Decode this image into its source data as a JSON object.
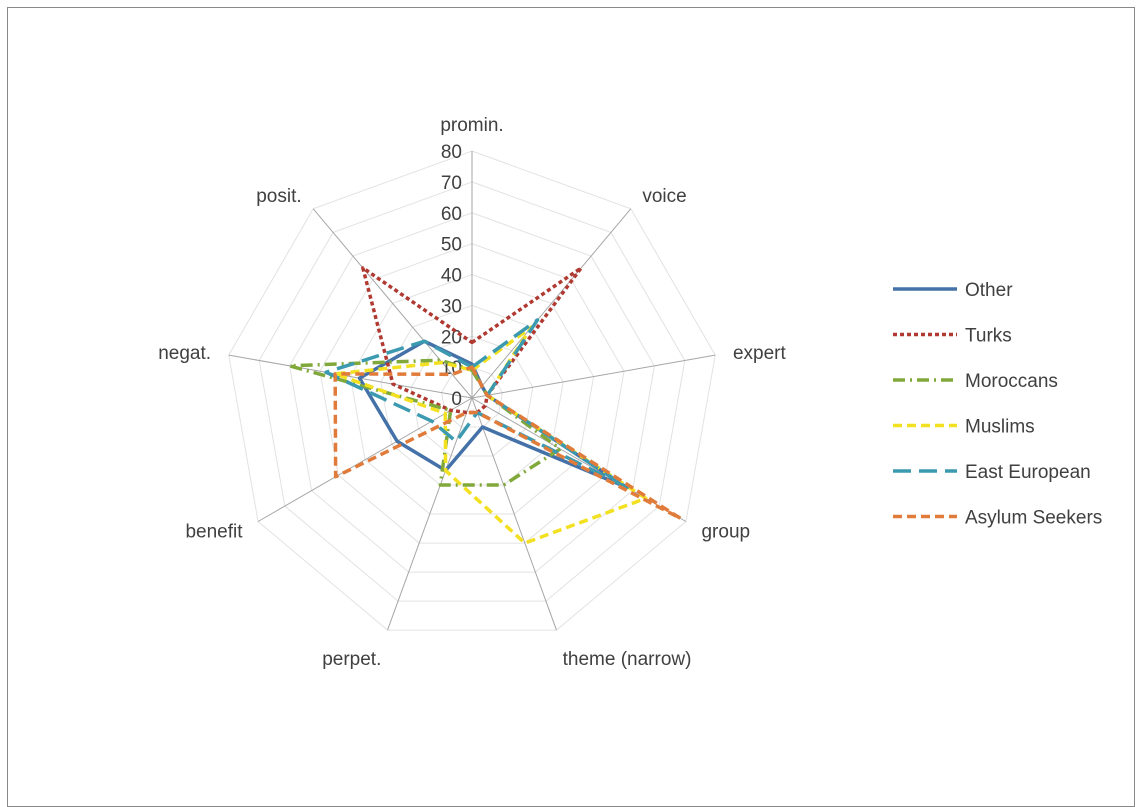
{
  "chart_data": {
    "type": "radar",
    "title": "",
    "categories": [
      "promin.",
      "voice",
      "expert",
      "group",
      "theme (narrow)",
      "perpet.",
      "benefit",
      "negat.",
      "posit."
    ],
    "r_ticks": [
      "0",
      "10",
      "20",
      "30",
      "40",
      "50",
      "60",
      "70",
      "80"
    ],
    "r_range": [
      0,
      80
    ],
    "grid": true,
    "legend_position": "right",
    "series": [
      {
        "name": "Other",
        "color": "#4472a8",
        "dash": "solid",
        "values": [
          11,
          5,
          5,
          58,
          10,
          25,
          28,
          37,
          24
        ]
      },
      {
        "name": "Turks",
        "color": "#b03a32",
        "dash": "dot",
        "values": [
          18,
          55,
          5,
          5,
          5,
          5,
          8,
          26,
          55
        ]
      },
      {
        "name": "Moroccans",
        "color": "#80a83a",
        "dash": "dashdot",
        "values": [
          9,
          5,
          5,
          33,
          30,
          30,
          8,
          60,
          16
        ]
      },
      {
        "name": "Muslims",
        "color": "#f2e021",
        "dash": "dash",
        "values": [
          9,
          30,
          5,
          65,
          50,
          25,
          10,
          45,
          15
        ]
      },
      {
        "name": "East European",
        "color": "#3b9ab0",
        "dash": "longdash",
        "values": [
          10,
          33,
          5,
          58,
          5,
          15,
          15,
          48,
          24
        ]
      },
      {
        "name": "Asylum Seekers",
        "color": "#e07b3a",
        "dash": "dash",
        "values": [
          10,
          5,
          5,
          78,
          5,
          5,
          51,
          45,
          10
        ]
      }
    ]
  }
}
